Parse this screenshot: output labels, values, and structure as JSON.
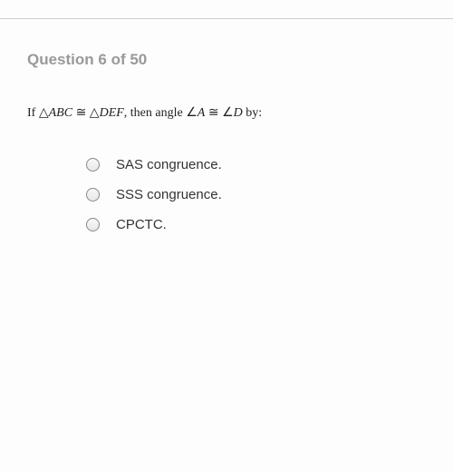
{
  "header": {
    "title": "Question 6 of 50"
  },
  "question": {
    "prefix": "If ",
    "expr1_tri": "△",
    "expr1_letters": "ABC",
    "congruent1": " ≅ ",
    "expr2_tri": "△",
    "expr2_letters": "DEF",
    "middle": ", then angle ",
    "angle1_sym": "∠",
    "angle1_letter": "A",
    "congruent2": " ≅ ",
    "angle2_sym": "∠",
    "angle2_letter": "D",
    "suffix": " by:"
  },
  "options": [
    {
      "label": "SAS congruence."
    },
    {
      "label": "SSS congruence."
    },
    {
      "label": "CPCTC."
    }
  ],
  "styles": {
    "background_color": "#fdfdfd",
    "divider_color": "#cccccc",
    "header_color": "#999999",
    "header_fontsize": 17,
    "text_color": "#222222",
    "text_fontsize": 14,
    "option_color": "#333333",
    "option_fontsize": 15,
    "radio_border": "#888888",
    "radio_size": 15
  }
}
